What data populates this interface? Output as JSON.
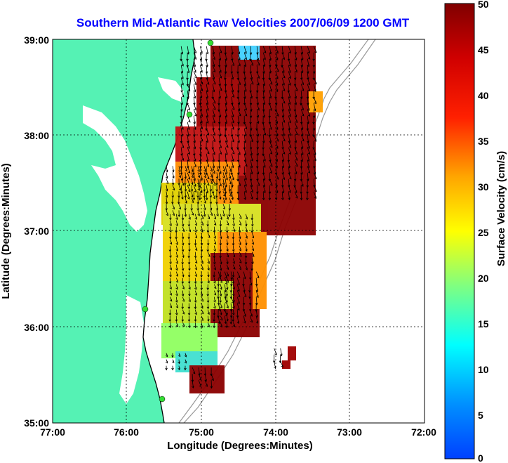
{
  "title": "Southern Mid-Atlantic Raw Velocities 2007/06/09 1200 GMT",
  "x_axis": {
    "label": "Longitude (Degrees:Minutes)",
    "ticks": [
      "77:00",
      "76:00",
      "75:00",
      "74:00",
      "73:00",
      "72:00"
    ],
    "tick_values": [
      -77,
      -76,
      -75,
      -74,
      -73,
      -72
    ]
  },
  "y_axis": {
    "label": "Latitude (Degrees:Minutes)",
    "ticks": [
      "39:00",
      "38:00",
      "37:00",
      "36:00",
      "35:00"
    ],
    "tick_values": [
      39,
      38,
      37,
      36,
      35
    ]
  },
  "colorbar": {
    "label": "Surface Velocity (cm/s)",
    "ticks": [
      "50",
      "45",
      "40",
      "35",
      "30",
      "25",
      "20",
      "15",
      "10",
      "5",
      "0"
    ],
    "range": [
      0,
      50
    ],
    "colormap": "jet"
  },
  "colors": {
    "land": "#55f2b4",
    "background": "#ffffff",
    "title": "#0000ff",
    "station_marker": "#33dd33",
    "arrows": "#000000",
    "grid": "#000000"
  },
  "chart_data": {
    "type": "heatmap",
    "title": "Southern Mid-Atlantic Raw Velocities 2007/06/09 1200 GMT",
    "xlabel": "Longitude (Degrees:Minutes)",
    "ylabel": "Latitude (Degrees:Minutes)",
    "xlim": [
      -77,
      -72
    ],
    "ylim": [
      35,
      39
    ],
    "grid": true,
    "colorbar_label": "Surface Velocity (cm/s)",
    "colorbar_range": [
      0,
      50
    ],
    "stations": [
      {
        "lon": -74.95,
        "lat": 38.98
      },
      {
        "lon": -75.1,
        "lat": 38.22
      },
      {
        "lon": -75.7,
        "lat": 36.18
      },
      {
        "lon": -75.5,
        "lat": 35.25
      }
    ],
    "velocity_regions": [
      {
        "lon_range": [
          -75.3,
          -73.45
        ],
        "lat_range": [
          37.4,
          38.95
        ],
        "speed": 48
      },
      {
        "lon_range": [
          -75.5,
          -74.6
        ],
        "lat_range": [
          37.2,
          37.7
        ],
        "speed": 30
      },
      {
        "lon_range": [
          -75.45,
          -74.3
        ],
        "lat_range": [
          36.6,
          37.2
        ],
        "speed": 27
      },
      {
        "lon_range": [
          -75.45,
          -74.55
        ],
        "lat_range": [
          36.0,
          36.6
        ],
        "speed": 24
      },
      {
        "lon_range": [
          -74.8,
          -74.2
        ],
        "lat_range": [
          36.1,
          36.6
        ],
        "speed": 46
      },
      {
        "lon_range": [
          -75.15,
          -74.85
        ],
        "lat_range": [
          35.4,
          35.6
        ],
        "speed": 46
      },
      {
        "lon_range": [
          -75.5,
          -75.2
        ],
        "lat_range": [
          35.55,
          35.75
        ],
        "speed": 12
      },
      {
        "lon_range": [
          -74.05,
          -73.9
        ],
        "lat_range": [
          35.6,
          35.8
        ],
        "speed": 46
      }
    ]
  }
}
